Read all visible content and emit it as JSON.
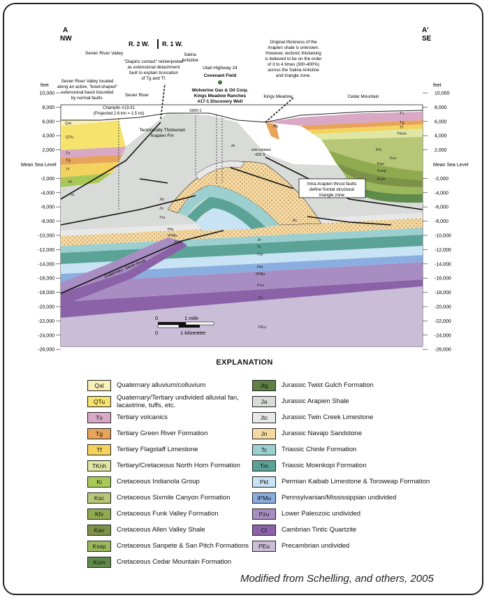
{
  "section": {
    "end_left": {
      "letter": "A",
      "dir": "NW"
    },
    "end_right": {
      "letter": "A'",
      "dir": "SE"
    },
    "axis_unit": "feet",
    "sea_level": "Mean Sea Level",
    "ticks_pos": [
      "10,000",
      "8,000",
      "6,000",
      "4,000",
      "2,000"
    ],
    "ticks_neg": [
      "-2,000",
      "-4,000",
      "-6,000",
      "-8,000",
      "-10,000",
      "-12,000",
      "-14,000",
      "-16,000",
      "-18,000",
      "-20,000",
      "-22,000",
      "-24,000",
      "-26,000"
    ],
    "range": {
      "r1": "R. 2 W.",
      "r2": "R. 1 W."
    },
    "labels": {
      "sevier_valley": "Sevier River Valley",
      "basin_note": [
        "Sevier River Valley located",
        "along an active, \"bowl-shaped\"",
        "extensional basin bounded",
        "by normal faults."
      ],
      "diapiric_note": [
        "\"Diapiric contact\" reinterpreted",
        "as extensional detachment",
        "fault to explain truncation",
        "of Tg and Tf."
      ],
      "salina": [
        "Salina",
        "Anticline"
      ],
      "highway": "Utah Highway 24",
      "covenant": "Covenant Field",
      "wolverine": [
        "Wolverine Gas & Oil Corp.",
        "Kings Meadow Ranches",
        "#17-1 Discovery Well"
      ],
      "thickness_note": [
        "Original thickness of the",
        "Arapien shale is unknown.",
        "However, tectonic thickening",
        "is believed to be on the order",
        "of 3 to 4 times (300-400%)",
        "across the Salina Anticline",
        "and triangle zone."
      ],
      "sevier_river": "Sevier River",
      "champlin": [
        "Champlin #13-31",
        "(Projected 2.6 km = 1.5 mi)"
      ],
      "kings_meadow": "Kings Meadow",
      "cedar_mountain": "Cedar Mountain",
      "swd": "SWD-1",
      "thickened": [
        "Tectonically Thickened",
        "Arapien Fm"
      ],
      "owc": [
        "o/w contact",
        "-601 ft"
      ],
      "thrust_box": [
        "Intra-Arapien thrust faults",
        "define frontal structural",
        "triangle zone"
      ],
      "qf": "Quaternary - Sevier thrust",
      "scale_mile": "1 mile",
      "scale_km": "1 kilometer",
      "scale_zero": "0"
    },
    "unit_tags": {
      "Qal": "Qal",
      "QTu": "QTu",
      "Tv": "Tv",
      "Tg": "Tg",
      "Tf": "Tf",
      "TKnh": "TKnh",
      "Ki": "Ki",
      "Ksc": "Ksc",
      "Kfv": "Kfv",
      "Kav": "Kav",
      "Kssp": "Kssp",
      "Kcm": "Kcm",
      "Ja": "Ja",
      "Jtc": "Jtc",
      "Jn": "Jn",
      "Tc": "Tc",
      "Tm": "Tm",
      "Pkt": "Pkt",
      "IPMu": "IPMu",
      "Pzu": "Pzu",
      "Ct": "Ct",
      "PCu": "PEu",
      "Jtg": "Jtg"
    }
  },
  "explanation_title": "EXPLANATION",
  "legend_left": [
    {
      "sym": "Qal",
      "color": "#f7f0b8",
      "label": "Quaternary alluvium/colluvium"
    },
    {
      "sym": "QTu",
      "color": "#f5e36d",
      "label": "Quaternary/Tertiary undivided alluvial fan, lacastrine, tuffs, etc."
    },
    {
      "sym": "Tv",
      "color": "#d9a8c4",
      "label": "Tertiary volcanics"
    },
    {
      "sym": "Tg",
      "color": "#e8a35a",
      "label": "Tertiary Green River Formation"
    },
    {
      "sym": "Tf",
      "color": "#f3d35e",
      "label": "Tertiary Flagstaff Limestone"
    },
    {
      "sym": "TKnh",
      "color": "#dfe7a3",
      "label": "Tertiary/Cretaceous North Horn Formation"
    },
    {
      "sym": "Ki",
      "color": "#a9c957",
      "label": "Cretaceous Indianola Group"
    },
    {
      "sym": "Ksc",
      "color": "#b7c777",
      "label": "Cretaceous Sixmile Canyon Formation"
    },
    {
      "sym": "Kfv",
      "color": "#8faa4f",
      "label": "Cretaceous Funk Valley Formation"
    },
    {
      "sym": "Kav",
      "color": "#7c9246",
      "label": "Cretaceous Allen Valley Shale"
    },
    {
      "sym": "Kssp",
      "color": "#9bb95c",
      "label": "Cretaceous Sanpete & San Pitch Formations"
    },
    {
      "sym": "Kcm",
      "color": "#5e8a4a",
      "label": "Cretaceous Cedar Mountain Formation"
    }
  ],
  "legend_right": [
    {
      "sym": "Jtg",
      "color": "#5f7f45",
      "label": "Jurassic Twist Gulch Formation"
    },
    {
      "sym": "Ja",
      "color": "#d9dbd9",
      "label": "Jurassic Arapien Shale"
    },
    {
      "sym": "Jtc",
      "color": "#e8e8e8",
      "label": "Jurassic Twin Creek Limestone"
    },
    {
      "sym": "Jn",
      "color": "#f6d9a1",
      "label": "Jurassic Navajo Sandstone"
    },
    {
      "sym": "Tc",
      "color": "#9ccfcf",
      "label": "Triassic Chinle Formation"
    },
    {
      "sym": "Tm",
      "color": "#5aa396",
      "label": "Triassic Moenkopi Formation"
    },
    {
      "sym": "Pkt",
      "color": "#c8e3f4",
      "label": "Permian Kaibab Limestone & Toroweap Formation"
    },
    {
      "sym": "IPMu",
      "color": "#8aaee0",
      "label": "Pennsylvanian/Mississippian undivided"
    },
    {
      "sym": "Pzu",
      "color": "#a88dc2",
      "label": "Lower Paleozoic undivided"
    },
    {
      "sym": "Ct",
      "color": "#8b62a8",
      "label": "Cambrian Tintic Quartzite"
    },
    {
      "sym": "PEu",
      "color": "#c9bdd8",
      "label": "Precambrian undivided"
    }
  ],
  "credit": "Modified from Schelling,  and others, 2005"
}
